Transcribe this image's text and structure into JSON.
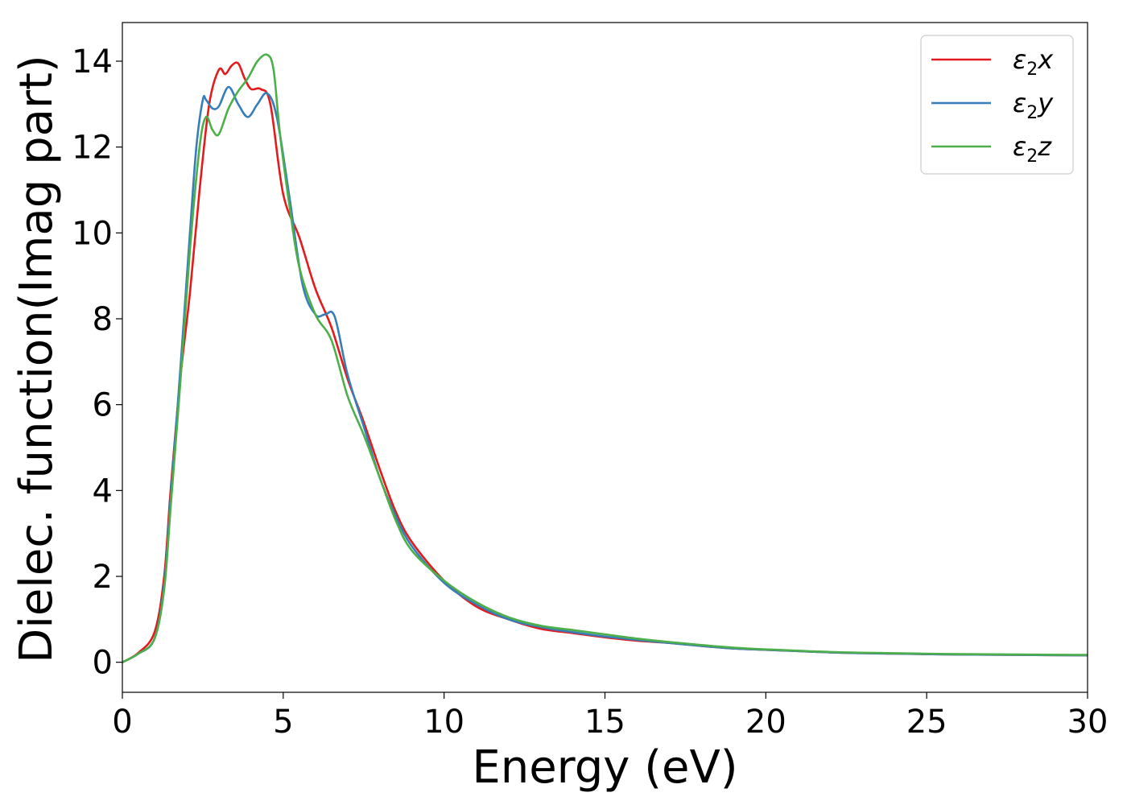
{
  "chart_data": {
    "type": "line",
    "xlabel": "Energy (eV)",
    "ylabel": "Dielec. function(Imag part)",
    "xlim": [
      0,
      30
    ],
    "ylim": [
      -0.7,
      14.9
    ],
    "xticks": [
      0,
      5,
      10,
      15,
      20,
      25,
      30
    ],
    "yticks": [
      0,
      2,
      4,
      6,
      8,
      10,
      12,
      14
    ],
    "grid": false,
    "legend_position": "top-right",
    "series": [
      {
        "name": "ε2x",
        "legend_base": "ε",
        "legend_sub": "2",
        "legend_suffix": "x",
        "color": "#e41a1c",
        "x": [
          0,
          0.5,
          1.0,
          1.3,
          1.5,
          1.8,
          2.1,
          2.4,
          2.7,
          3.0,
          3.2,
          3.4,
          3.6,
          3.8,
          4.0,
          4.3,
          4.6,
          5.0,
          5.5,
          6.0,
          6.5,
          7.0,
          7.5,
          8.0,
          8.5,
          9.0,
          10.0,
          11.0,
          12.0,
          13.0,
          14.0,
          15.0,
          16.0,
          17.0,
          18.0,
          19.0,
          20.0,
          22.0,
          24.0,
          26.0,
          28.0,
          30.0
        ],
        "y": [
          0,
          0.22,
          0.7,
          2.0,
          4.0,
          6.6,
          8.6,
          11.0,
          13.0,
          13.8,
          13.7,
          13.9,
          13.95,
          13.6,
          13.35,
          13.35,
          13.0,
          10.9,
          9.9,
          8.7,
          7.8,
          6.6,
          5.6,
          4.5,
          3.5,
          2.8,
          1.9,
          1.3,
          1.0,
          0.78,
          0.68,
          0.58,
          0.5,
          0.45,
          0.38,
          0.32,
          0.29,
          0.23,
          0.2,
          0.18,
          0.17,
          0.16
        ]
      },
      {
        "name": "ε2y",
        "legend_base": "ε",
        "legend_sub": "2",
        "legend_suffix": "y",
        "color": "#377eb8",
        "x": [
          0,
          0.5,
          1.0,
          1.3,
          1.5,
          1.8,
          2.1,
          2.3,
          2.5,
          2.6,
          2.8,
          3.0,
          3.3,
          3.6,
          3.9,
          4.2,
          4.5,
          4.8,
          5.2,
          5.6,
          6.0,
          6.3,
          6.6,
          7.0,
          7.5,
          8.0,
          8.5,
          9.0,
          10.0,
          11.0,
          12.0,
          13.0,
          14.0,
          15.0,
          16.0,
          17.0,
          18.0,
          19.0,
          20.0,
          22.0,
          24.0,
          26.0,
          28.0,
          30.0
        ],
        "y": [
          0,
          0.2,
          0.55,
          1.8,
          3.8,
          6.8,
          10.0,
          12.0,
          13.1,
          13.1,
          12.9,
          12.95,
          13.4,
          13.0,
          12.7,
          13.0,
          13.25,
          12.7,
          10.8,
          8.8,
          8.1,
          8.1,
          8.05,
          6.7,
          5.5,
          4.3,
          3.4,
          2.7,
          1.85,
          1.35,
          1.0,
          0.82,
          0.7,
          0.6,
          0.52,
          0.45,
          0.38,
          0.32,
          0.29,
          0.23,
          0.2,
          0.18,
          0.17,
          0.16
        ]
      },
      {
        "name": "ε2z",
        "legend_base": "ε",
        "legend_sub": "2",
        "legend_suffix": "z",
        "color": "#4daf4a",
        "x": [
          0,
          0.5,
          1.0,
          1.3,
          1.5,
          1.8,
          2.1,
          2.4,
          2.6,
          2.8,
          3.0,
          3.3,
          3.6,
          3.9,
          4.2,
          4.5,
          4.7,
          4.9,
          5.2,
          5.5,
          6.0,
          6.5,
          7.0,
          7.5,
          8.0,
          8.5,
          9.0,
          10.0,
          11.0,
          12.0,
          13.0,
          14.0,
          15.0,
          16.0,
          17.0,
          18.0,
          19.0,
          20.0,
          22.0,
          24.0,
          26.0,
          28.0,
          30.0
        ],
        "y": [
          0,
          0.2,
          0.55,
          1.7,
          3.6,
          6.5,
          9.6,
          12.0,
          12.7,
          12.4,
          12.3,
          12.9,
          13.3,
          13.6,
          14.0,
          14.15,
          13.8,
          12.3,
          10.6,
          9.2,
          8.1,
          7.5,
          6.2,
          5.3,
          4.3,
          3.3,
          2.6,
          1.9,
          1.4,
          1.05,
          0.85,
          0.75,
          0.65,
          0.55,
          0.47,
          0.4,
          0.34,
          0.3,
          0.24,
          0.21,
          0.19,
          0.18,
          0.17
        ]
      }
    ]
  }
}
